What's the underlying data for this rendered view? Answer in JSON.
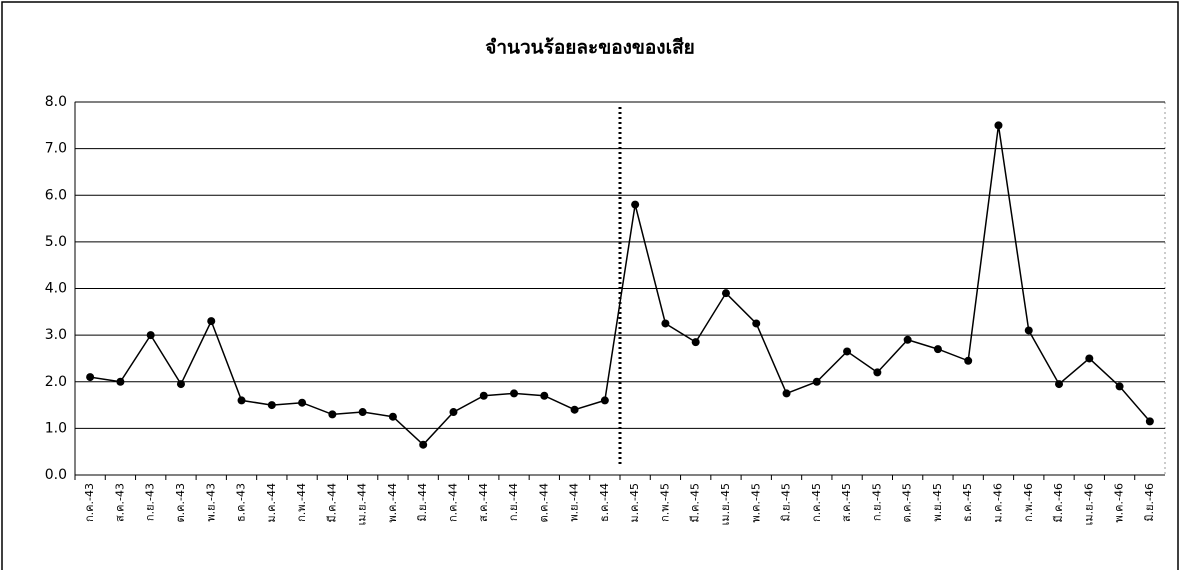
{
  "chart_data": {
    "type": "line",
    "title": "จำนวนร้อยละของของเสีย",
    "categories": [
      "ก.ค.-43",
      "ส.ค.-43",
      "ก.ย.-43",
      "ต.ค.-43",
      "พ.ย.-43",
      "ธ.ค.-43",
      "ม.ค.-44",
      "ก.พ.-44",
      "มี.ค.-44",
      "เม.ย.-44",
      "พ.ค.-44",
      "มิ.ย.-44",
      "ก.ค.-44",
      "ส.ค.-44",
      "ก.ย.-44",
      "ต.ค.-44",
      "พ.ย.-44",
      "ธ.ค.-44",
      "ม.ค.-45",
      "ก.พ.-45",
      "มี.ค.-45",
      "เม.ย.-45",
      "พ.ค.-45",
      "มิ.ย.-45",
      "ก.ค.-45",
      "ส.ค.-45",
      "ก.ย.-45",
      "ต.ค.-45",
      "พ.ย.-45",
      "ธ.ค.-45",
      "ม.ค.-46",
      "ก.พ.-46",
      "มี.ค.-46",
      "เม.ย.-46",
      "พ.ค.-46",
      "มิ.ย.-46"
    ],
    "values": [
      2.1,
      2.0,
      3.0,
      1.95,
      3.3,
      1.6,
      1.5,
      1.55,
      1.3,
      1.35,
      1.25,
      0.65,
      1.35,
      1.7,
      1.75,
      1.7,
      1.4,
      1.6,
      5.8,
      3.25,
      2.85,
      3.9,
      3.25,
      1.75,
      2.0,
      2.65,
      2.2,
      2.9,
      2.7,
      2.45,
      7.5,
      3.1,
      1.95,
      2.5,
      1.9,
      1.15
    ],
    "color": "#000000",
    "ylim": [
      0,
      8
    ],
    "yticks": [
      {
        "value": 0,
        "label": "0.0"
      },
      {
        "value": 1,
        "label": "1.0"
      },
      {
        "value": 2,
        "label": "2.0"
      },
      {
        "value": 3,
        "label": "3.0"
      },
      {
        "value": 4,
        "label": "4.0"
      },
      {
        "value": 5,
        "label": "5.0"
      },
      {
        "value": 6,
        "label": "6.0"
      },
      {
        "value": 7,
        "label": "7.0"
      },
      {
        "value": 8,
        "label": "8.0"
      }
    ],
    "grid": true
  }
}
